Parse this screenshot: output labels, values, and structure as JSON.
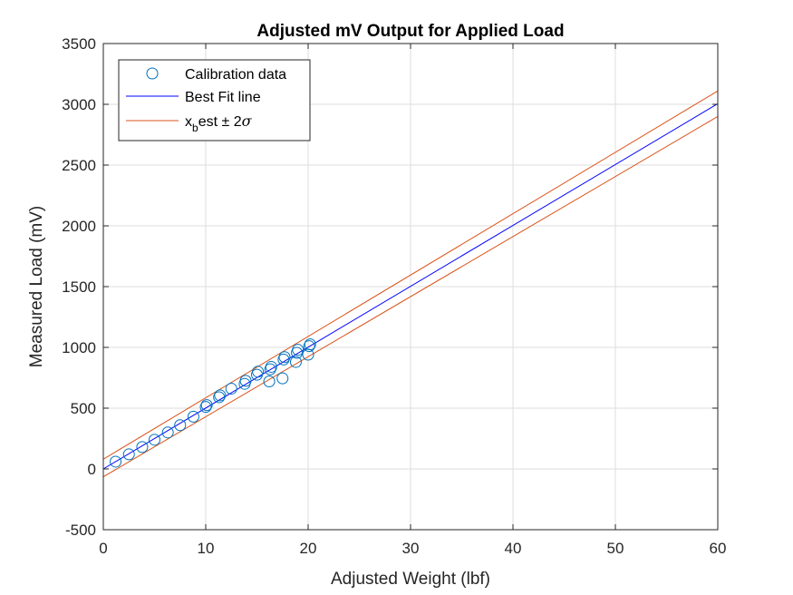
{
  "chart_data": {
    "type": "scatter",
    "title": "Adjusted mV Output for Applied Load",
    "xlabel": "Adjusted Weight (lbf)",
    "ylabel": "Measured Load (mV)",
    "xlim": [
      0,
      60
    ],
    "ylim": [
      -500,
      3500
    ],
    "xticks": [
      0,
      10,
      20,
      30,
      40,
      50,
      60
    ],
    "yticks": [
      -500,
      0,
      500,
      1000,
      1500,
      2000,
      2500,
      3000,
      3500
    ],
    "xtick_labels": [
      "0",
      "10",
      "20",
      "30",
      "40",
      "50",
      "60"
    ],
    "ytick_labels": [
      "-500",
      "0",
      "500",
      "1000",
      "1500",
      "2000",
      "2500",
      "3000",
      "3500"
    ],
    "grid": true,
    "legend_position": "top-left",
    "series": [
      {
        "name": "Calibration data",
        "kind": "markers",
        "color": "#0072bd",
        "points": [
          [
            1.2,
            60
          ],
          [
            2.5,
            120
          ],
          [
            3.8,
            180
          ],
          [
            5.0,
            240
          ],
          [
            6.3,
            300
          ],
          [
            7.5,
            360
          ],
          [
            8.8,
            430
          ],
          [
            10.0,
            510
          ],
          [
            10.1,
            525
          ],
          [
            11.3,
            590
          ],
          [
            11.4,
            605
          ],
          [
            12.5,
            660
          ],
          [
            13.8,
            700
          ],
          [
            13.9,
            725
          ],
          [
            15.0,
            775
          ],
          [
            15.1,
            800
          ],
          [
            16.2,
            720
          ],
          [
            16.3,
            820
          ],
          [
            16.4,
            840
          ],
          [
            17.5,
            745
          ],
          [
            17.6,
            900
          ],
          [
            17.7,
            920
          ],
          [
            18.8,
            880
          ],
          [
            18.9,
            955
          ],
          [
            19.0,
            980
          ],
          [
            20.0,
            940
          ],
          [
            20.1,
            1010
          ],
          [
            20.2,
            1025
          ]
        ]
      },
      {
        "name": "Best Fit line",
        "kind": "line",
        "color": "#0000ff",
        "x": [
          0,
          60
        ],
        "y": [
          0,
          3005
        ]
      },
      {
        "name": "x_best ± 2σ",
        "kind": "band",
        "color": "#d95319",
        "x": [
          0,
          60
        ],
        "upper": [
          80,
          3110
        ],
        "lower": [
          -65,
          2900
        ]
      }
    ],
    "legend": {
      "entries": [
        {
          "label": "Calibration data",
          "symbol": "circle",
          "color": "#0072bd"
        },
        {
          "label": "Best Fit line",
          "symbol": "line",
          "color": "#0000ff"
        },
        {
          "label_parts": [
            "x",
            "b",
            "est ± 2",
            "σ"
          ],
          "symbol": "line",
          "color": "#d95319"
        }
      ]
    }
  }
}
